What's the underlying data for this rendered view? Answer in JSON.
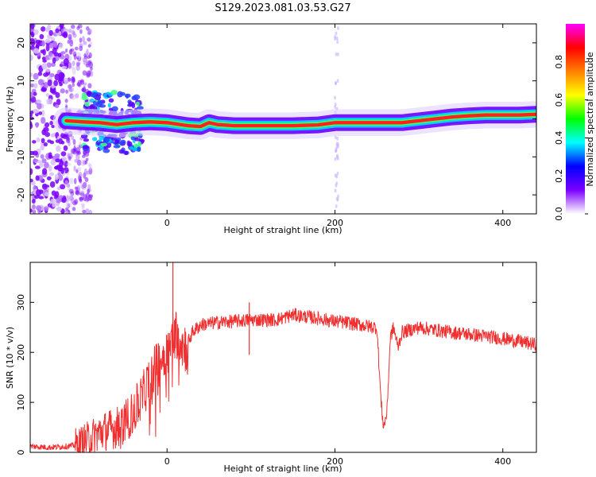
{
  "title": "S129.2023.081.03.53.G27",
  "chart_data": [
    {
      "type": "heatmap",
      "xlabel": "Height of straight line (km)",
      "ylabel": "Frequency (Hz)",
      "xlim": [
        -163,
        440
      ],
      "ylim": [
        -25,
        25
      ],
      "x_ticks": [
        0,
        200,
        400
      ],
      "y_ticks": [
        -20,
        -10,
        0,
        10,
        20
      ],
      "colorbar": {
        "label": "Normalized spectral amplitude",
        "range": [
          0,
          1
        ],
        "ticks": [
          "0.0",
          "0.2",
          "0.4",
          "0.6",
          "0.8"
        ],
        "colors": [
          "#ffffff",
          "#7b00ff",
          "#0000ff",
          "#00ffff",
          "#00ff00",
          "#ffff00",
          "#ff7f00",
          "#ff0000",
          "#ff00ff"
        ]
      },
      "ridge": {
        "x": [
          -120,
          -100,
          -80,
          -60,
          -40,
          -20,
          0,
          25,
          40,
          50,
          60,
          80,
          100,
          120,
          150,
          180,
          200,
          220,
          250,
          280,
          300,
          320,
          340,
          360,
          380,
          400,
          420,
          440
        ],
        "frequency": [
          -0.5,
          -0.8,
          -1.0,
          -1.5,
          -1.0,
          -0.8,
          -1.0,
          -1.8,
          -2.0,
          -1.0,
          -1.5,
          -1.8,
          -1.8,
          -1.8,
          -1.8,
          -1.6,
          -1.0,
          -1.0,
          -1.0,
          -1.0,
          -0.5,
          0.0,
          0.5,
          0.8,
          1.0,
          1.0,
          1.0,
          1.2
        ]
      }
    },
    {
      "type": "line",
      "xlabel": "Height of straight line (km)",
      "ylabel": "SNR (10 * v/v)",
      "xlim": [
        -163,
        440
      ],
      "ylim": [
        0,
        380
      ],
      "x_ticks": [
        0,
        200,
        400
      ],
      "y_ticks": [
        0,
        100,
        200,
        300
      ],
      "color": "#f03030",
      "x": [
        -163,
        -140,
        -120,
        -105,
        -90,
        -80,
        -60,
        -50,
        -40,
        -30,
        -20,
        -10,
        0,
        5,
        10,
        15,
        20,
        25,
        30,
        40,
        60,
        80,
        100,
        130,
        150,
        180,
        200,
        220,
        240,
        250,
        255,
        258,
        262,
        266,
        270,
        275,
        280,
        300,
        330,
        360,
        390,
        420,
        440
      ],
      "snr": [
        12,
        10,
        12,
        15,
        30,
        40,
        50,
        60,
        80,
        110,
        150,
        180,
        200,
        220,
        240,
        235,
        210,
        220,
        240,
        255,
        260,
        262,
        265,
        265,
        275,
        268,
        262,
        258,
        252,
        250,
        100,
        50,
        80,
        230,
        250,
        210,
        240,
        250,
        242,
        236,
        230,
        222,
        215
      ],
      "spikes": [
        {
          "x": 7,
          "snr": 380
        },
        {
          "x": 98,
          "snr": 300
        },
        {
          "x": 98,
          "snr": 195
        }
      ]
    }
  ]
}
